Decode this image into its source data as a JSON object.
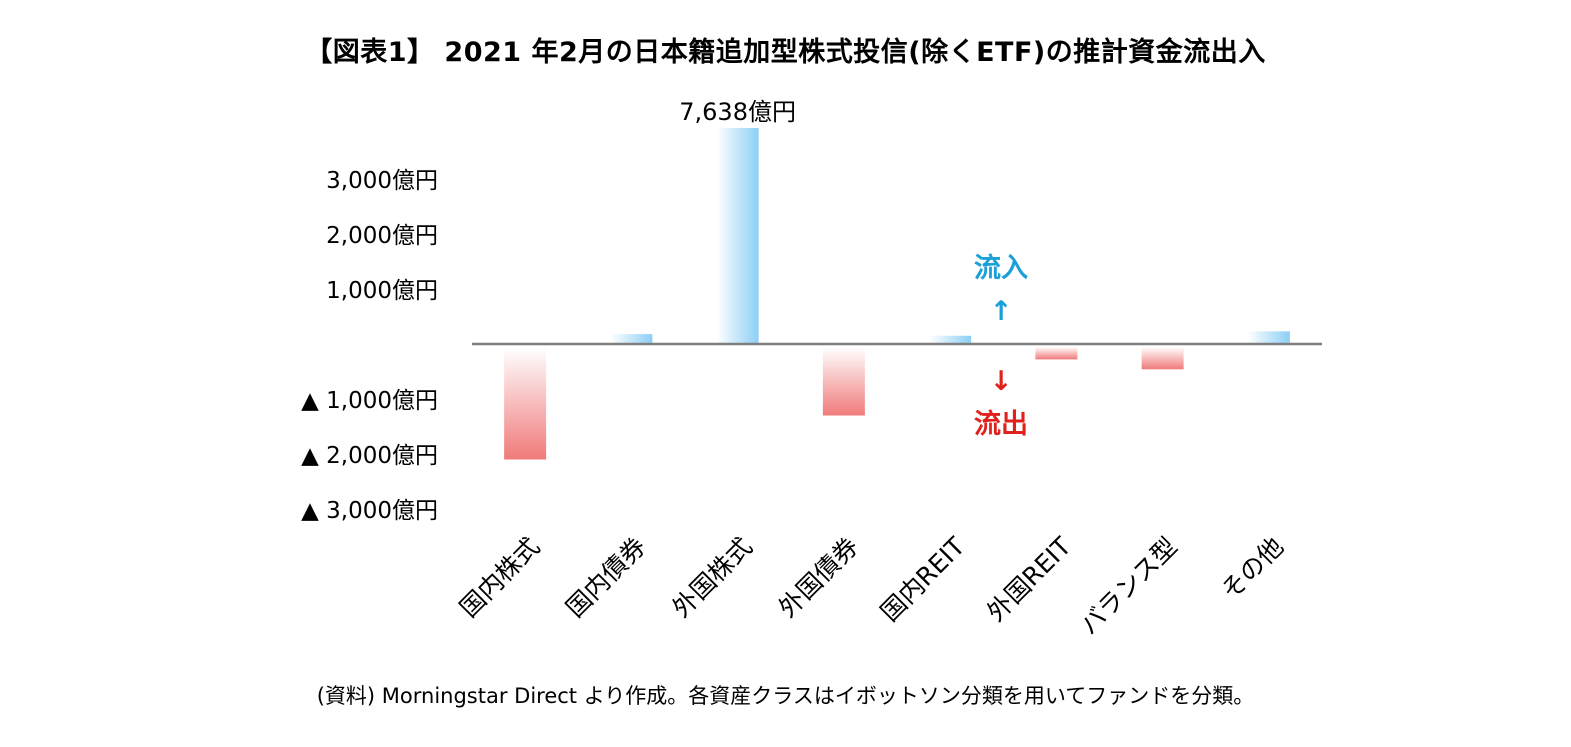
{
  "chart_data": {
    "type": "bar",
    "title": "【図表1】 2021 年2月の日本籍追加型株式投信(除くETF)の推計資金流出入",
    "categories": [
      "国内株式",
      "国内債券",
      "外国株式",
      "外国債券",
      "国内REIT",
      "外国REIT",
      "バランス型",
      "その他"
    ],
    "values": [
      -2100,
      180,
      7638,
      -1300,
      150,
      -280,
      -460,
      230
    ],
    "value_labels": [
      "",
      "",
      "7,638億円",
      "",
      "",
      "",
      "",
      ""
    ],
    "y_ticks": [
      {
        "value": 3000,
        "label": "3,000億円"
      },
      {
        "value": 2000,
        "label": "2,000億円"
      },
      {
        "value": 1000,
        "label": "1,000億円"
      },
      {
        "value": -1000,
        "label": "▲ 1,000億円"
      },
      {
        "value": -2000,
        "label": "▲ 2,000億円"
      },
      {
        "value": -3000,
        "label": "▲ 3,000億円"
      }
    ],
    "ylim": [
      -3200,
      3600
    ],
    "axis_break": true,
    "grid": false,
    "annotations": {
      "inflow_label": "流入",
      "inflow_arrow": "↑",
      "outflow_label": "流出",
      "outflow_arrow": "↓"
    },
    "colors": {
      "positive": "#8ccff5",
      "negative": "#f28080",
      "axis": "#7f7f7f",
      "inflow": "#1a9fd8",
      "outflow": "#e0211d"
    }
  },
  "source_note": "(資料) Morningstar Direct より作成。各資産クラスはイボットソン分類を用いてファンドを分類。"
}
